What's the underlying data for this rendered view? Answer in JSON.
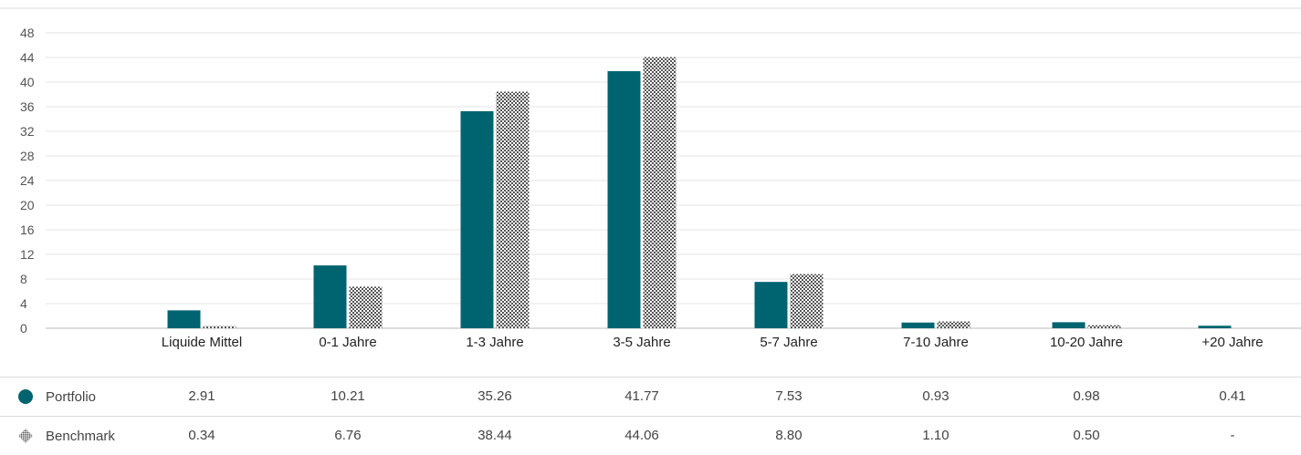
{
  "chart_data": {
    "type": "bar",
    "categories": [
      "Liquide Mittel",
      "0-1 Jahre",
      "1-3 Jahre",
      "3-5 Jahre",
      "5-7 Jahre",
      "7-10 Jahre",
      "10-20 Jahre",
      "+20 Jahre"
    ],
    "series": [
      {
        "name": "Portfolio",
        "values": [
          2.91,
          10.21,
          35.26,
          41.77,
          7.53,
          0.93,
          0.98,
          0.41
        ],
        "labels": [
          "2.91",
          "10.21",
          "35.26",
          "41.77",
          "7.53",
          "0.93",
          "0.98",
          "0.41"
        ],
        "color": "#006470",
        "pattern": "solid"
      },
      {
        "name": "Benchmark",
        "values": [
          0.34,
          6.76,
          38.44,
          44.06,
          8.8,
          1.1,
          0.5,
          null
        ],
        "labels": [
          "0.34",
          "6.76",
          "38.44",
          "44.06",
          "8.80",
          "1.10",
          "0.50",
          "-"
        ],
        "color": "#555555",
        "pattern": "checker"
      }
    ],
    "yticks": [
      0,
      4,
      8,
      12,
      16,
      20,
      24,
      28,
      32,
      36,
      40,
      44,
      48
    ],
    "ylim": [
      0,
      48
    ],
    "grid": true,
    "legend": "table-below"
  }
}
